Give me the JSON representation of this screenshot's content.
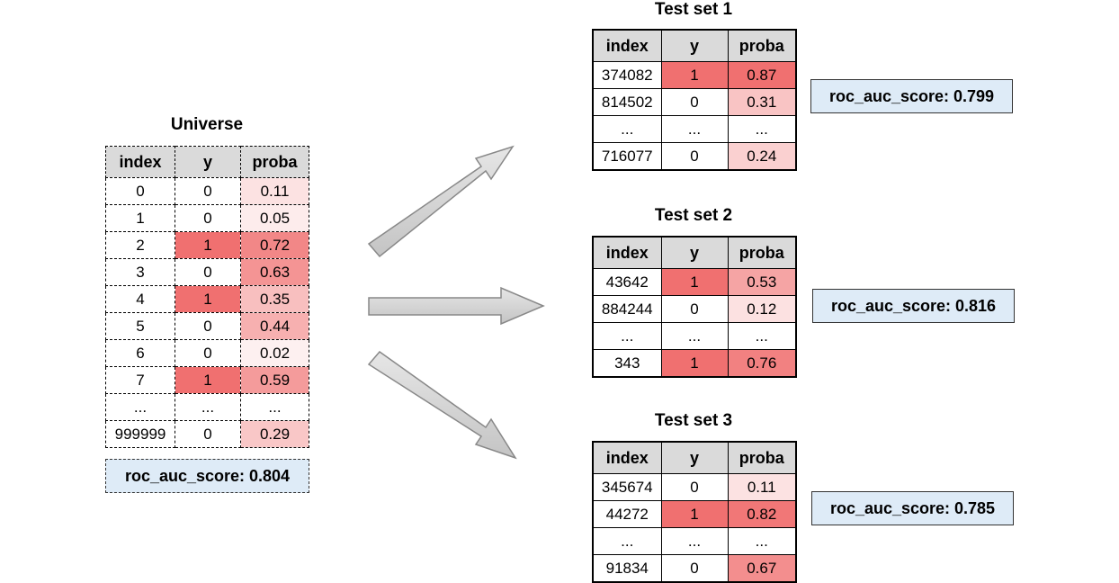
{
  "headers": [
    "index",
    "y",
    "proba"
  ],
  "colors": {
    "positive": "#f07070",
    "header": "#dadada",
    "score_bg": "#deebf7"
  },
  "universe": {
    "title": "Universe",
    "rows": [
      [
        "0",
        "0",
        "0.11"
      ],
      [
        "1",
        "0",
        "0.05"
      ],
      [
        "2",
        "1",
        "0.72"
      ],
      [
        "3",
        "0",
        "0.63"
      ],
      [
        "4",
        "1",
        "0.35"
      ],
      [
        "5",
        "0",
        "0.44"
      ],
      [
        "6",
        "0",
        "0.02"
      ],
      [
        "7",
        "1",
        "0.59"
      ],
      [
        "...",
        "...",
        "..."
      ],
      [
        "999999",
        "0",
        "0.29"
      ]
    ],
    "score": "roc_auc_score: 0.804"
  },
  "test_sets": [
    {
      "title": "Test set 1",
      "rows": [
        [
          "374082",
          "1",
          "0.87"
        ],
        [
          "814502",
          "0",
          "0.31"
        ],
        [
          "...",
          "...",
          "..."
        ],
        [
          "716077",
          "0",
          "0.24"
        ]
      ],
      "score": "roc_auc_score: 0.799"
    },
    {
      "title": "Test set 2",
      "rows": [
        [
          "43642",
          "1",
          "0.53"
        ],
        [
          "884244",
          "0",
          "0.12"
        ],
        [
          "...",
          "...",
          "..."
        ],
        [
          "343",
          "1",
          "0.76"
        ]
      ],
      "score": "roc_auc_score: 0.816"
    },
    {
      "title": "Test set 3",
      "rows": [
        [
          "345674",
          "0",
          "0.11"
        ],
        [
          "44272",
          "1",
          "0.82"
        ],
        [
          "...",
          "...",
          "..."
        ],
        [
          "91834",
          "0",
          "0.67"
        ]
      ],
      "score": "roc_auc_score: 0.785"
    }
  ]
}
